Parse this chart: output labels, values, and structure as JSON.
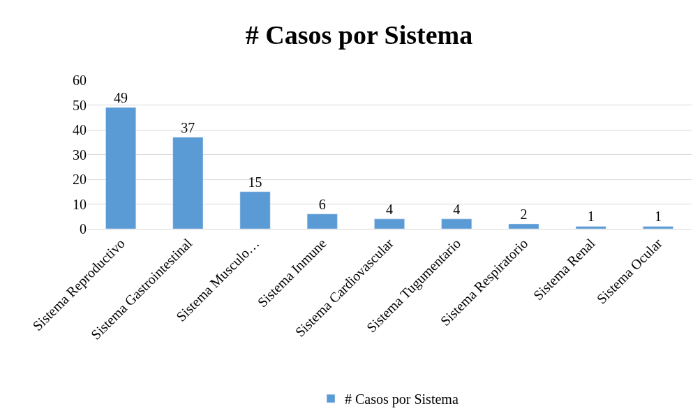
{
  "chart_data": {
    "type": "bar",
    "title": "# Casos por Sistema",
    "categories": [
      "Sistema Reproductivo",
      "Sistema Gastrointestinal",
      "Sistema Musculo…",
      "Sistema Inmune",
      "Sistema Cardiovascular",
      "Sistema Tugumentario",
      "Sistema Respiratorio",
      "Sistema Renal",
      "Sistema Ocular"
    ],
    "series": [
      {
        "name": "# Casos por Sistema",
        "color": "#5b9bd5",
        "values": [
          49,
          37,
          15,
          6,
          4,
          4,
          2,
          1,
          1
        ]
      }
    ],
    "ylim": [
      0,
      60
    ],
    "yticks": [
      0,
      10,
      20,
      30,
      40,
      50,
      60
    ],
    "grid": "y",
    "legend": "bottom",
    "data_labels": true
  }
}
